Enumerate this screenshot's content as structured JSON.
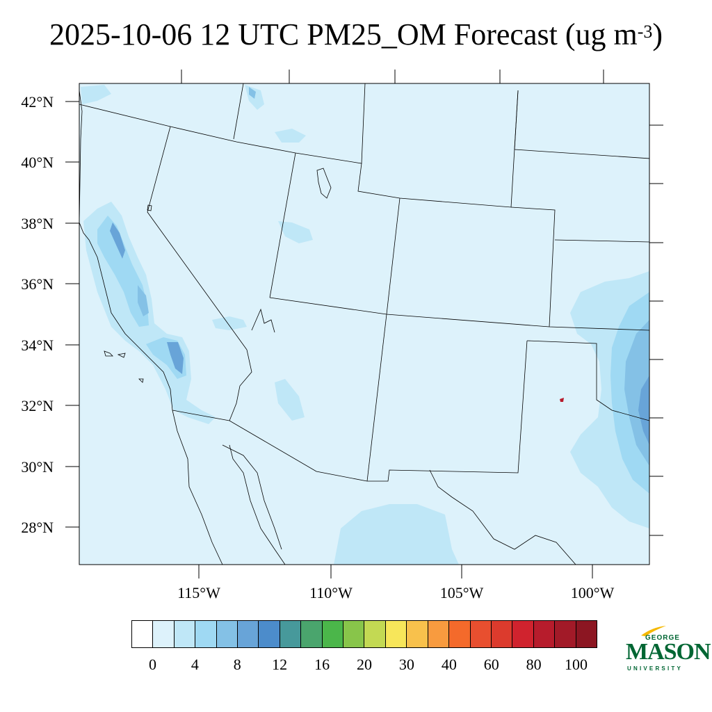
{
  "title": {
    "text": "2025-10-06 12 UTC PM25_OM Forecast (ug m",
    "superscript": "-3",
    "suffix": ")"
  },
  "map": {
    "projection": "lambert-conformal",
    "lon_range": [
      -119.5,
      -98.0
    ],
    "lat_range": [
      26.8,
      42.6
    ],
    "background_value_color": "#ddf2fb",
    "lat_ticks": [
      {
        "value": 42,
        "label": "42°N"
      },
      {
        "value": 40,
        "label": "40°N"
      },
      {
        "value": 38,
        "label": "38°N"
      },
      {
        "value": 36,
        "label": "36°N"
      },
      {
        "value": 34,
        "label": "34°N"
      },
      {
        "value": 32,
        "label": "32°N"
      },
      {
        "value": 30,
        "label": "30°N"
      },
      {
        "value": 28,
        "label": "28°N"
      }
    ],
    "lon_ticks": [
      {
        "value": -115,
        "label": "115°W"
      },
      {
        "value": -110,
        "label": "110°W"
      },
      {
        "value": -105,
        "label": "105°W"
      },
      {
        "value": -100,
        "label": "100°W"
      }
    ]
  },
  "colorbar": {
    "colors": [
      "#ffffff",
      "#ddf2fb",
      "#bfe7f7",
      "#9fd9f3",
      "#84c1e6",
      "#68a4d8",
      "#4c8ccb",
      "#47999b",
      "#4aa56d",
      "#4bb64a",
      "#88c54a",
      "#c3d953",
      "#f7e65a",
      "#f8c14c",
      "#f89b3f",
      "#f46a2b",
      "#e84f2f",
      "#dc3b2d",
      "#d0232e",
      "#b71c2c",
      "#a21a28",
      "#8c1622"
    ],
    "labels": [
      {
        "text": "0",
        "index": 1
      },
      {
        "text": "4",
        "index": 3
      },
      {
        "text": "8",
        "index": 5
      },
      {
        "text": "12",
        "index": 7
      },
      {
        "text": "16",
        "index": 9
      },
      {
        "text": "20",
        "index": 11
      },
      {
        "text": "30",
        "index": 13
      },
      {
        "text": "40",
        "index": 15
      },
      {
        "text": "60",
        "index": 17
      },
      {
        "text": "80",
        "index": 19
      },
      {
        "text": "100",
        "index": 21
      }
    ]
  },
  "logo": {
    "top": "GEORGE",
    "main": "MASON",
    "bottom": "UNIVERSITY",
    "color": "#006633",
    "accent": "#f5b800"
  }
}
